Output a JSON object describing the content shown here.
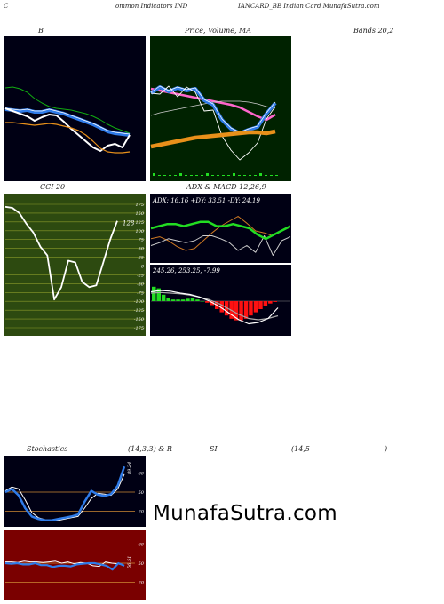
{
  "header": {
    "left": "C",
    "mid": "ommon  Indicators IND",
    "right": "IANCARD_BE Indian  Card MunafaSutra.com"
  },
  "titles": {
    "bb": "B",
    "price": "Price,  Volume,  MA",
    "bands": "Bands 20,2",
    "cci": "CCI 20",
    "adx": "ADX  & MACD 12,26,9",
    "stoch1": "Stochastics",
    "stoch2": "(14,3,3) & R",
    "rsi1": "SI",
    "rsi2": "(14,5",
    "rsi3": ")"
  },
  "watermark": "MunafaSutra.com",
  "colors": {
    "dark_bg": "#000014",
    "price_bg": "#002200",
    "cci_bg": "#2d4a10",
    "rsi_bg": "#7a0000",
    "blue": "#2f7be8",
    "orange": "#e8901a",
    "green": "#22dd22"
  },
  "chart_data": [
    {
      "id": "bollinger",
      "type": "line",
      "series": [
        {
          "values": [
            59,
            58,
            60,
            64,
            71,
            76,
            80,
            82,
            83,
            84,
            86,
            88,
            91,
            95,
            100,
            104,
            107,
            110
          ]
        },
        {
          "values": [
            83,
            84,
            85,
            84,
            86,
            86,
            84,
            86,
            88,
            91,
            94,
            97,
            100,
            104,
            108,
            110,
            111,
            112
          ]
        },
        {
          "values": [
            82,
            85,
            88,
            91,
            96,
            92,
            89,
            90,
            97,
            105,
            112,
            119,
            126,
            130,
            124,
            122,
            126,
            112
          ]
        },
        {
          "values": [
            98,
            98,
            99,
            100,
            101,
            100,
            99,
            100,
            102,
            104,
            107,
            112,
            119,
            127,
            131,
            132,
            132,
            131
          ]
        }
      ]
    },
    {
      "id": "price_volume_ma",
      "type": "line",
      "series": [
        {
          "values": [
            105,
            98,
            103,
            99,
            102,
            100,
            113,
            118,
            135,
            145,
            150,
            146,
            143,
            128,
            116
          ]
        },
        {
          "values": [
            98,
            100,
            102,
            104,
            106,
            108,
            110,
            112,
            114,
            116,
            119,
            124,
            129,
            133,
            127
          ]
        },
        {
          "values": [
            130,
            127,
            125,
            123,
            121,
            119,
            117,
            115,
            114,
            114,
            114,
            115,
            117,
            120,
            122
          ]
        },
        {
          "values": [
            165,
            163,
            161,
            159,
            157,
            155,
            154,
            153,
            152,
            151,
            150,
            149,
            149,
            150,
            148
          ]
        }
      ]
    },
    {
      "id": "cci",
      "type": "line",
      "ylim": [
        -175,
        175
      ],
      "yticks": [
        175,
        150,
        125,
        100,
        75,
        50,
        25,
        0,
        -25,
        -50,
        -75,
        -100,
        -125,
        -150,
        -175
      ],
      "last_label": "128",
      "values": [
        168,
        165,
        150,
        120,
        95,
        55,
        30,
        -95,
        -60,
        15,
        10,
        -45,
        -60,
        -55,
        10,
        75,
        128
      ]
    },
    {
      "id": "adx",
      "type": "line",
      "label": "ADX: 16.16  +DY: 33.51 -DY: 24.19",
      "series": [
        {
          "values": [
            15,
            16,
            17,
            17,
            16,
            17,
            18,
            18,
            16,
            16,
            17,
            16,
            15,
            12,
            10,
            12,
            14,
            16
          ]
        },
        {
          "values": [
            22,
            24,
            20,
            14,
            10,
            12,
            20,
            28,
            35,
            40,
            45,
            38,
            30,
            28,
            25,
            30,
            34
          ]
        },
        {
          "values": [
            15,
            18,
            22,
            20,
            18,
            20,
            25,
            25,
            22,
            18,
            10,
            15,
            8,
            25,
            5,
            20,
            24
          ]
        }
      ]
    },
    {
      "id": "macd",
      "type": "bar",
      "label": "245.26,  253.25,  -7.99",
      "hist": [
        18,
        16,
        8,
        4,
        2,
        2,
        2,
        3,
        4,
        2,
        0,
        -2,
        -5,
        -10,
        -14,
        -18,
        -22,
        -24,
        -24,
        -22,
        -18,
        -14,
        -10,
        -6,
        -3,
        -1
      ],
      "series": [
        {
          "values": [
            14,
            16,
            15,
            12,
            10,
            6,
            0,
            -8,
            -18,
            -28,
            -34,
            -32,
            -26,
            -10
          ]
        },
        {
          "values": [
            12,
            13,
            12,
            11,
            9,
            6,
            2,
            -4,
            -12,
            -20,
            -26,
            -28,
            -26,
            -22
          ]
        }
      ]
    },
    {
      "id": "stochastics",
      "type": "line",
      "ylim": [
        0,
        100
      ],
      "yticks": [
        80,
        50,
        20
      ],
      "last_label": "89.24",
      "series": [
        {
          "values": [
            50,
            55,
            45,
            25,
            12,
            8,
            6,
            6,
            8,
            10,
            12,
            15,
            35,
            52,
            46,
            44,
            47,
            60,
            90
          ]
        },
        {
          "values": [
            52,
            58,
            55,
            38,
            18,
            10,
            7,
            6,
            6,
            8,
            10,
            12,
            25,
            40,
            48,
            47,
            45,
            55,
            78
          ]
        }
      ]
    },
    {
      "id": "rsi",
      "type": "line",
      "ylim": [
        0,
        100
      ],
      "yticks": [
        80,
        50,
        20
      ],
      "last_label": "56.51",
      "series": [
        {
          "values": [
            52,
            52,
            51,
            53,
            52,
            52,
            51,
            52,
            53,
            50,
            52,
            49,
            51,
            50,
            46,
            45,
            52,
            50,
            49,
            46
          ]
        },
        {
          "values": [
            50,
            49,
            50,
            48,
            48,
            50,
            47,
            47,
            44,
            46,
            46,
            45,
            48,
            49,
            50,
            50,
            48,
            46,
            40,
            50,
            46
          ]
        }
      ]
    }
  ]
}
